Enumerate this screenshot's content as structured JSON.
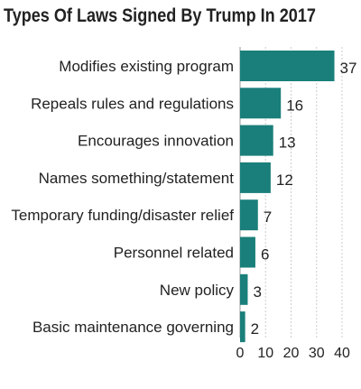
{
  "chart_data": {
    "type": "bar",
    "orientation": "horizontal",
    "title": "Types Of Laws Signed By Trump In 2017",
    "categories": [
      "Modifies existing program",
      "Repeals rules and regulations",
      "Encourages innovation",
      "Names something/statement",
      "Temporary funding/disaster relief",
      "Personnel related",
      "New policy",
      "Basic maintenance governing"
    ],
    "values": [
      37,
      16,
      13,
      12,
      7,
      6,
      3,
      2
    ],
    "xlim": [
      0,
      40
    ],
    "xticks": [
      0,
      10,
      20,
      30,
      40
    ],
    "xlabel": "",
    "ylabel": "",
    "grid": true,
    "bar_color": "#1a7f7a"
  }
}
